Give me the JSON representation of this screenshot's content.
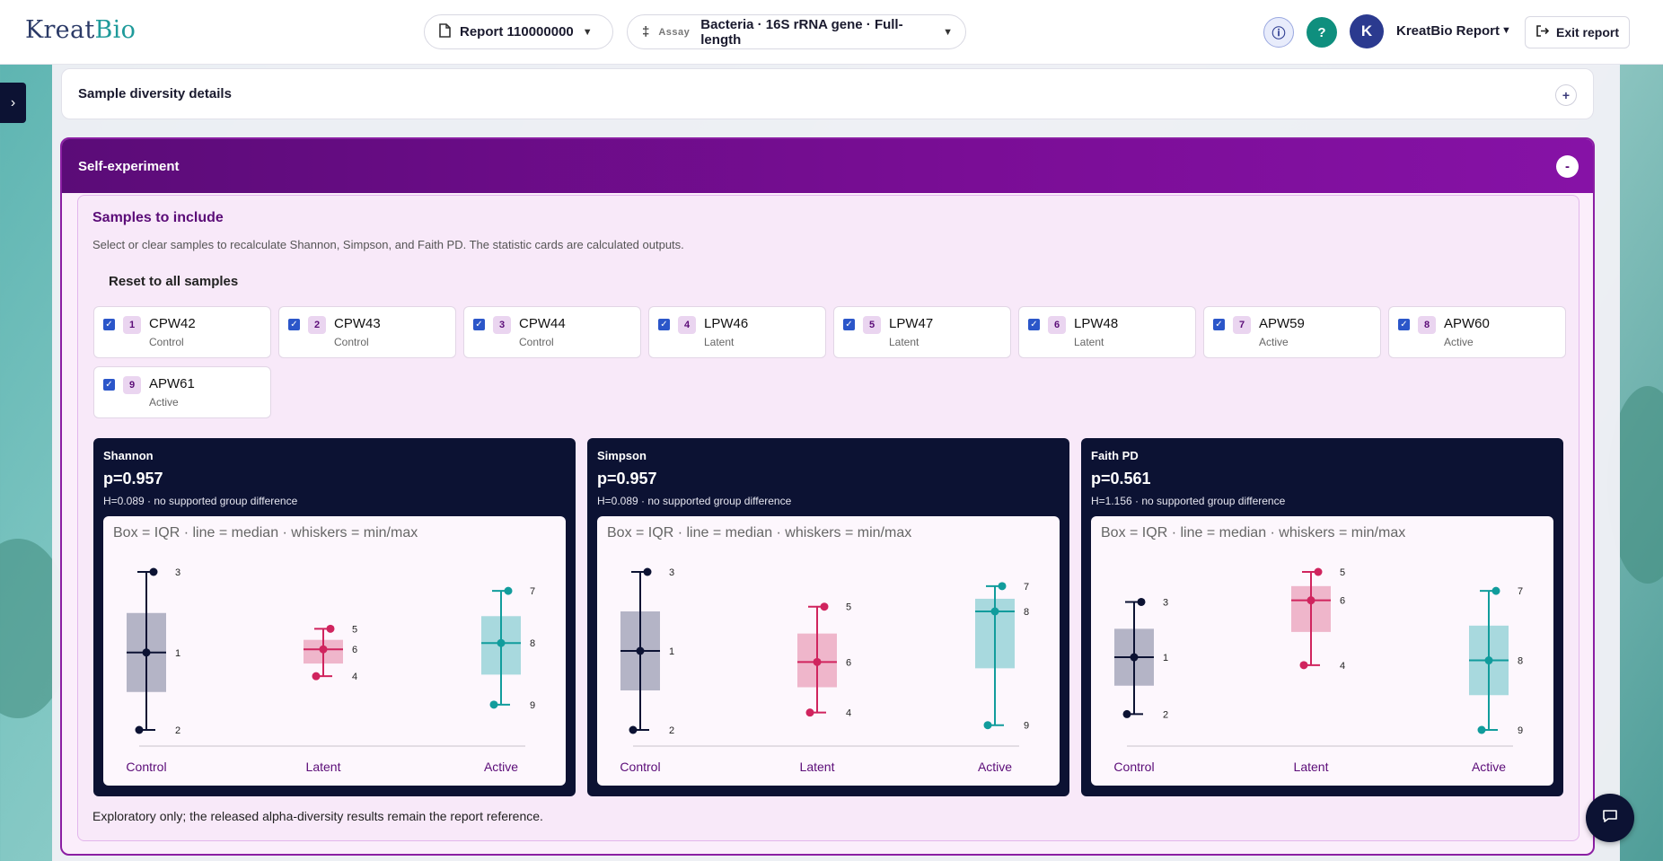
{
  "header": {
    "logo_part1": "Kreat",
    "logo_part2": "Bio",
    "report_selector": "Report 110000000",
    "assay_tag": "Assay",
    "assay_value": "Bacteria · 16S rRNA gene · Full-length",
    "user_initial": "K",
    "user_name": "KreatBio Report",
    "exit_label": "Exit report"
  },
  "icons": {
    "report": "document-icon",
    "assay": "assay-icon",
    "info": "info-icon",
    "help": "help-icon",
    "exit": "exit-icon",
    "chat": "chat-icon"
  },
  "colors": {
    "header_purple": "#6b0e88",
    "dark_navy": "#0c1233",
    "control": "#0c1233",
    "latent": "#d0245e",
    "active": "#119c9c"
  },
  "diversity_panel": {
    "title": "Sample diversity details",
    "toggle": "+"
  },
  "self_experiment": {
    "title": "Self-experiment",
    "toggle": "-",
    "include_title": "Samples to include",
    "include_desc": "Select or clear samples to recalculate Shannon, Simpson, and Faith PD. The statistic cards are calculated outputs.",
    "reset_label": "Reset to all samples",
    "samples": [
      {
        "num": "1",
        "name": "CPW42",
        "group": "Control",
        "checked": true
      },
      {
        "num": "2",
        "name": "CPW43",
        "group": "Control",
        "checked": true
      },
      {
        "num": "3",
        "name": "CPW44",
        "group": "Control",
        "checked": true
      },
      {
        "num": "4",
        "name": "LPW46",
        "group": "Latent",
        "checked": true
      },
      {
        "num": "5",
        "name": "LPW47",
        "group": "Latent",
        "checked": true
      },
      {
        "num": "6",
        "name": "LPW48",
        "group": "Latent",
        "checked": true
      },
      {
        "num": "7",
        "name": "APW59",
        "group": "Active",
        "checked": true
      },
      {
        "num": "8",
        "name": "APW60",
        "group": "Active",
        "checked": true
      },
      {
        "num": "9",
        "name": "APW61",
        "group": "Active",
        "checked": true
      }
    ],
    "footnote": "Exploratory only; the released alpha-diversity results remain the report reference."
  },
  "chart_data": [
    {
      "type": "box",
      "title": "Shannon",
      "p_value": "p=0.957",
      "subtitle": "H=0.089 · no supported group difference",
      "legend": "Box = IQR · line = median · whiskers = min/max",
      "categories": [
        "Control",
        "Latent",
        "Active"
      ],
      "ylim": [
        0,
        100
      ],
      "groups": [
        {
          "name": "Control",
          "min": 0,
          "q1": 24,
          "median": 49,
          "q3": 74,
          "max": 100,
          "points": [
            {
              "label": "3",
              "y": 100
            },
            {
              "label": "1",
              "y": 49
            },
            {
              "label": "2",
              "y": 0
            }
          ]
        },
        {
          "name": "Latent",
          "min": 34,
          "q1": 42,
          "median": 51,
          "q3": 57,
          "max": 64,
          "points": [
            {
              "label": "5",
              "y": 64
            },
            {
              "label": "6",
              "y": 51
            },
            {
              "label": "4",
              "y": 34
            }
          ]
        },
        {
          "name": "Active",
          "min": 16,
          "q1": 35,
          "median": 55,
          "q3": 72,
          "max": 88,
          "points": [
            {
              "label": "7",
              "y": 88
            },
            {
              "label": "8",
              "y": 55
            },
            {
              "label": "9",
              "y": 16
            }
          ]
        }
      ]
    },
    {
      "type": "box",
      "title": "Simpson",
      "p_value": "p=0.957",
      "subtitle": "H=0.089 · no supported group difference",
      "legend": "Box = IQR · line = median · whiskers = min/max",
      "categories": [
        "Control",
        "Latent",
        "Active"
      ],
      "ylim": [
        0,
        100
      ],
      "groups": [
        {
          "name": "Control",
          "min": 0,
          "q1": 25,
          "median": 50,
          "q3": 75,
          "max": 100,
          "points": [
            {
              "label": "3",
              "y": 100
            },
            {
              "label": "1",
              "y": 50
            },
            {
              "label": "2",
              "y": 0
            }
          ]
        },
        {
          "name": "Latent",
          "min": 11,
          "q1": 27,
          "median": 43,
          "q3": 61,
          "max": 78,
          "points": [
            {
              "label": "5",
              "y": 78
            },
            {
              "label": "6",
              "y": 43
            },
            {
              "label": "4",
              "y": 11
            }
          ]
        },
        {
          "name": "Active",
          "min": 3,
          "q1": 39,
          "median": 75,
          "q3": 83,
          "max": 91,
          "points": [
            {
              "label": "7",
              "y": 91
            },
            {
              "label": "8",
              "y": 75
            },
            {
              "label": "9",
              "y": 3
            }
          ]
        }
      ]
    },
    {
      "type": "box",
      "title": "Faith PD",
      "p_value": "p=0.561",
      "subtitle": "H=1.156 · no supported group difference",
      "legend": "Box = IQR · line = median · whiskers = min/max",
      "categories": [
        "Control",
        "Latent",
        "Active"
      ],
      "ylim": [
        0,
        100
      ],
      "groups": [
        {
          "name": "Control",
          "min": 10,
          "q1": 28,
          "median": 46,
          "q3": 64,
          "max": 81,
          "points": [
            {
              "label": "3",
              "y": 81
            },
            {
              "label": "1",
              "y": 46
            },
            {
              "label": "2",
              "y": 10
            }
          ]
        },
        {
          "name": "Latent",
          "min": 41,
          "q1": 62,
          "median": 82,
          "q3": 91,
          "max": 100,
          "points": [
            {
              "label": "5",
              "y": 100
            },
            {
              "label": "6",
              "y": 82
            },
            {
              "label": "4",
              "y": 41
            }
          ]
        },
        {
          "name": "Active",
          "min": 0,
          "q1": 22,
          "median": 44,
          "q3": 66,
          "max": 88,
          "points": [
            {
              "label": "7",
              "y": 88
            },
            {
              "label": "8",
              "y": 44
            },
            {
              "label": "9",
              "y": 0
            }
          ]
        }
      ]
    }
  ]
}
